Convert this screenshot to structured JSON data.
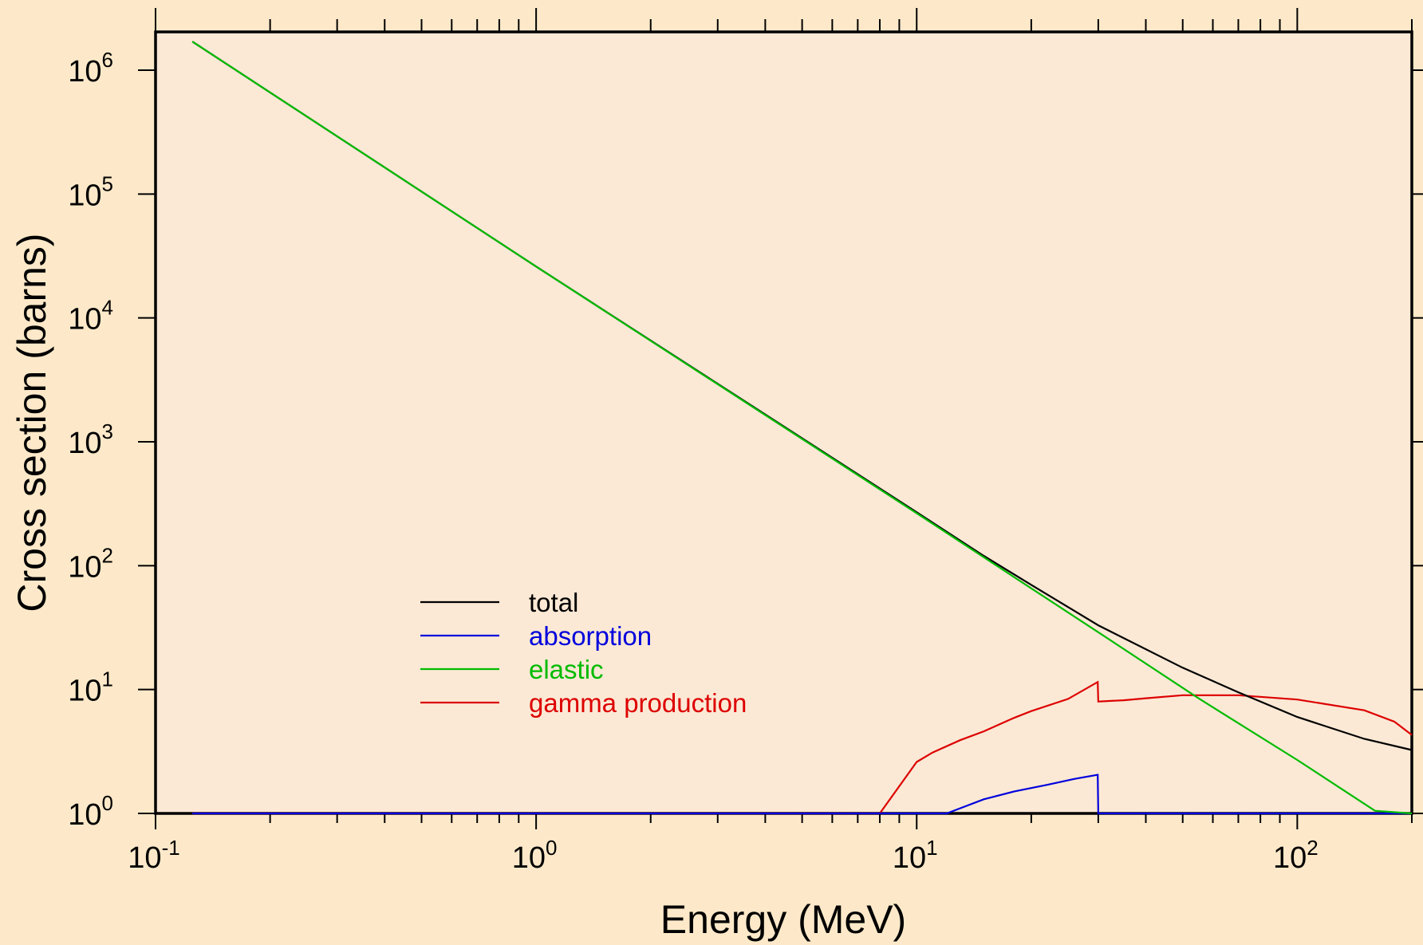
{
  "chart_data": {
    "type": "line",
    "xlabel": "Energy (MeV)",
    "ylabel": "Cross section (barns)",
    "xscale": "log",
    "yscale": "log",
    "xlim": [
      0.1,
      200
    ],
    "ylim": [
      1,
      2000000
    ],
    "grid": false,
    "legend_position": "lower-left inside plot",
    "x_ticks": [
      {
        "base": "10",
        "exp": "-1",
        "value": 0.1
      },
      {
        "base": "10",
        "exp": "0",
        "value": 1
      },
      {
        "base": "10",
        "exp": "1",
        "value": 10
      },
      {
        "base": "10",
        "exp": "2",
        "value": 100
      }
    ],
    "y_ticks": [
      {
        "base": "10",
        "exp": "0",
        "value": 1
      },
      {
        "base": "10",
        "exp": "1",
        "value": 10
      },
      {
        "base": "10",
        "exp": "2",
        "value": 100
      },
      {
        "base": "10",
        "exp": "3",
        "value": 1000
      },
      {
        "base": "10",
        "exp": "4",
        "value": 10000
      },
      {
        "base": "10",
        "exp": "5",
        "value": 100000
      },
      {
        "base": "10",
        "exp": "6",
        "value": 1000000
      }
    ],
    "series": [
      {
        "name": "total",
        "color": "#000000",
        "points": [
          [
            0.125,
            1700000
          ],
          [
            1,
            26000
          ],
          [
            10,
            270
          ],
          [
            15,
            120
          ],
          [
            20,
            70
          ],
          [
            30,
            33
          ],
          [
            50,
            15
          ],
          [
            70,
            9.5
          ],
          [
            100,
            6
          ],
          [
            150,
            4
          ],
          [
            200,
            3.25
          ]
        ]
      },
      {
        "name": "absorption",
        "color": "#0000dd",
        "points": [
          [
            0.125,
            1
          ],
          [
            12,
            1
          ],
          [
            13,
            1.1
          ],
          [
            15,
            1.3
          ],
          [
            18,
            1.5
          ],
          [
            22,
            1.7
          ],
          [
            26,
            1.9
          ],
          [
            29.9,
            2.05
          ],
          [
            30,
            1
          ],
          [
            200,
            1
          ]
        ]
      },
      {
        "name": "elastic",
        "color": "#00bb00",
        "points": [
          [
            0.125,
            1700000
          ],
          [
            1,
            26000
          ],
          [
            10,
            265
          ],
          [
            30,
            29
          ],
          [
            55,
            8.5
          ],
          [
            100,
            2.7
          ],
          [
            160,
            1.05
          ],
          [
            200,
            1
          ]
        ]
      },
      {
        "name": "gamma production",
        "color": "#dd0000",
        "points": [
          [
            0.125,
            1
          ],
          [
            8,
            1
          ],
          [
            10,
            2.6
          ],
          [
            11,
            3.1
          ],
          [
            13,
            3.9
          ],
          [
            15,
            4.6
          ],
          [
            18,
            5.9
          ],
          [
            20,
            6.7
          ],
          [
            25,
            8.4
          ],
          [
            29.9,
            11.5
          ],
          [
            30,
            8
          ],
          [
            35,
            8.2
          ],
          [
            40,
            8.5
          ],
          [
            50,
            9
          ],
          [
            70,
            9
          ],
          [
            100,
            8.3
          ],
          [
            150,
            6.8
          ],
          [
            180,
            5.5
          ],
          [
            200,
            4.3
          ]
        ]
      }
    ]
  }
}
